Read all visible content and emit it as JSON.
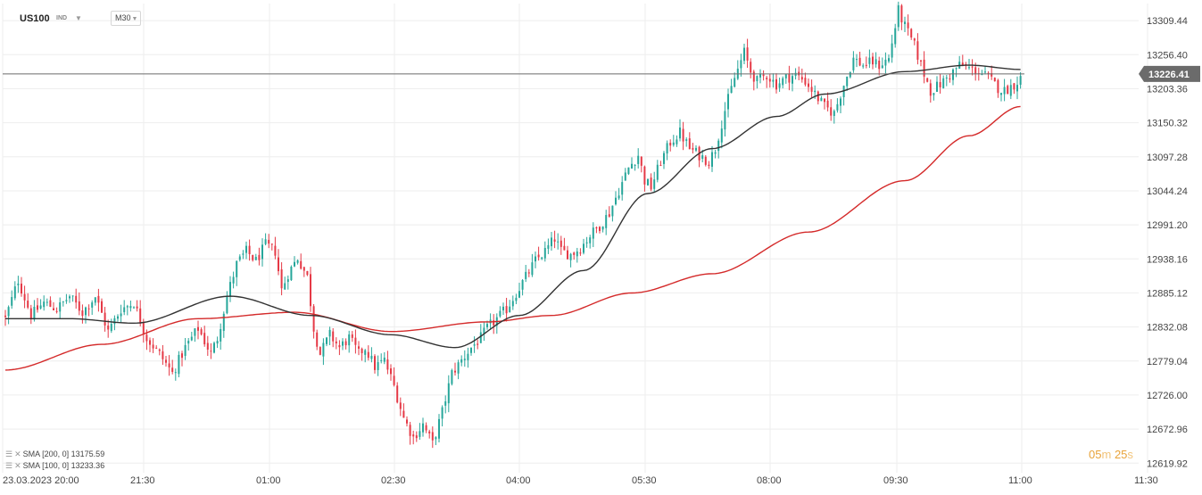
{
  "header": {
    "symbol": "US100",
    "instrument_type": "IND",
    "timeframe": "M30"
  },
  "legend": {
    "sma200": "SMA [200,  0]  13175.59",
    "sma100": "SMA [100,  0]  13233.36"
  },
  "timer": {
    "minutes": "05",
    "minutes_unit": "m",
    "seconds": "25",
    "seconds_unit": "s"
  },
  "colors": {
    "up": "#26a69a",
    "down": "#e53946",
    "sma200": "#d42a2a",
    "sma100": "#333333",
    "current_price": "#6b6b6b",
    "grid": "#eeeeee",
    "timer": "#e8a33a"
  },
  "chart_data": {
    "type": "candlestick",
    "symbol": "US100",
    "timeframe": "M30",
    "current_price": 13226.41,
    "current_price_label": "13226.41",
    "y_ticks": [
      "13309.44",
      "13256.40",
      "13203.36",
      "13150.32",
      "13097.28",
      "13044.24",
      "12991.20",
      "12938.16",
      "12885.12",
      "12832.08",
      "12779.04",
      "12726.00",
      "12672.96",
      "12619.92"
    ],
    "ylim": [
      12605,
      13336
    ],
    "x_ticks": [
      "23.03.2023  20:00",
      "21:30",
      "01:00",
      "02:30",
      "04:00",
      "05:30",
      "08:00",
      "09:30",
      "11:00",
      "11:30"
    ],
    "close_path": [
      [
        0,
        12845
      ],
      [
        4,
        12905
      ],
      [
        8,
        12850
      ],
      [
        12,
        12870
      ],
      [
        16,
        12860
      ],
      [
        20,
        12880
      ],
      [
        24,
        12855
      ],
      [
        28,
        12880
      ],
      [
        32,
        12825
      ],
      [
        36,
        12860
      ],
      [
        40,
        12870
      ],
      [
        44,
        12815
      ],
      [
        48,
        12790
      ],
      [
        52,
        12760
      ],
      [
        56,
        12800
      ],
      [
        60,
        12830
      ],
      [
        64,
        12790
      ],
      [
        66,
        12815
      ],
      [
        69,
        12880
      ],
      [
        72,
        12930
      ],
      [
        75,
        12950
      ],
      [
        78,
        12935
      ],
      [
        81,
        12960
      ],
      [
        84,
        12950
      ],
      [
        86,
        12890
      ],
      [
        88,
        12915
      ],
      [
        91,
        12940
      ],
      [
        94,
        12910
      ],
      [
        96,
        12830
      ],
      [
        98,
        12790
      ],
      [
        101,
        12820
      ],
      [
        104,
        12800
      ],
      [
        107,
        12815
      ],
      [
        110,
        12790
      ],
      [
        112,
        12800
      ],
      [
        115,
        12770
      ],
      [
        118,
        12780
      ],
      [
        121,
        12740
      ],
      [
        124,
        12690
      ],
      [
        127,
        12660
      ],
      [
        130,
        12680
      ],
      [
        133,
        12650
      ],
      [
        136,
        12700
      ],
      [
        139,
        12760
      ],
      [
        142,
        12780
      ],
      [
        145,
        12800
      ],
      [
        148,
        12815
      ],
      [
        150,
        12830
      ],
      [
        153,
        12845
      ],
      [
        156,
        12860
      ],
      [
        159,
        12885
      ],
      [
        162,
        12910
      ],
      [
        165,
        12935
      ],
      [
        168,
        12950
      ],
      [
        171,
        12970
      ],
      [
        173,
        12950
      ],
      [
        176,
        12945
      ],
      [
        179,
        12955
      ],
      [
        182,
        12975
      ],
      [
        185,
        12990
      ],
      [
        188,
        13010
      ],
      [
        191,
        13045
      ],
      [
        194,
        13080
      ],
      [
        197,
        13100
      ],
      [
        199,
        13060
      ],
      [
        201,
        13050
      ],
      [
        204,
        13090
      ],
      [
        207,
        13120
      ],
      [
        210,
        13135
      ],
      [
        213,
        13110
      ],
      [
        216,
        13100
      ],
      [
        219,
        13090
      ],
      [
        221,
        13110
      ],
      [
        224,
        13170
      ],
      [
        227,
        13220
      ],
      [
        230,
        13260
      ],
      [
        232,
        13230
      ],
      [
        234,
        13215
      ],
      [
        237,
        13225
      ],
      [
        240,
        13210
      ],
      [
        243,
        13220
      ],
      [
        246,
        13225
      ],
      [
        249,
        13215
      ],
      [
        252,
        13195
      ],
      [
        255,
        13175
      ],
      [
        258,
        13165
      ],
      [
        261,
        13210
      ],
      [
        264,
        13250
      ],
      [
        267,
        13240
      ],
      [
        270,
        13245
      ],
      [
        272,
        13240
      ],
      [
        275,
        13250
      ],
      [
        278,
        13325
      ],
      [
        280,
        13300
      ],
      [
        283,
        13270
      ],
      [
        285,
        13240
      ],
      [
        288,
        13200
      ],
      [
        291,
        13210
      ],
      [
        294,
        13225
      ],
      [
        297,
        13240
      ],
      [
        300,
        13235
      ],
      [
        303,
        13230
      ],
      [
        306,
        13220
      ],
      [
        309,
        13205
      ],
      [
        311,
        13200
      ],
      [
        314,
        13210
      ],
      [
        316,
        13220
      ]
    ],
    "series": [
      {
        "name": "SMA [200,  0]",
        "values": [
          [
            0,
            12765
          ],
          [
            30,
            12805
          ],
          [
            60,
            12845
          ],
          [
            90,
            12855
          ],
          [
            120,
            12825
          ],
          [
            150,
            12840
          ],
          [
            170,
            12850
          ],
          [
            195,
            12885
          ],
          [
            220,
            12915
          ],
          [
            250,
            12980
          ],
          [
            280,
            13060
          ],
          [
            300,
            13130
          ],
          [
            316,
            13175.59
          ]
        ]
      },
      {
        "name": "SMA [100,  0]",
        "values": [
          [
            0,
            12845
          ],
          [
            20,
            12845
          ],
          [
            40,
            12838
          ],
          [
            70,
            12880
          ],
          [
            95,
            12850
          ],
          [
            120,
            12820
          ],
          [
            140,
            12800
          ],
          [
            160,
            12850
          ],
          [
            180,
            12920
          ],
          [
            200,
            13040
          ],
          [
            220,
            13110
          ],
          [
            240,
            13160
          ],
          [
            255,
            13195
          ],
          [
            280,
            13230
          ],
          [
            300,
            13240
          ],
          [
            316,
            13233.36
          ]
        ]
      }
    ],
    "grid": true
  }
}
